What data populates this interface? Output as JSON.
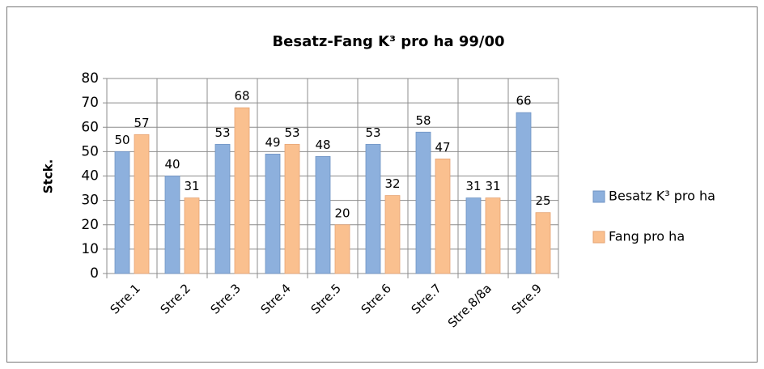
{
  "chart_data": {
    "type": "bar",
    "title": "Besatz-Fang K³ pro  ha 99/00",
    "y_label": "Stck.",
    "categories": [
      "Stre.1",
      "Stre.2",
      "Stre.3",
      "Stre.4",
      "Stre.5",
      "Stre.6",
      "Stre.7",
      "Stre.8/8a",
      "Stre.9"
    ],
    "series": [
      {
        "name": "Besatz K³ pro ha",
        "color": "#8db0dd",
        "values": [
          50,
          40,
          53,
          49,
          48,
          53,
          58,
          31,
          66
        ]
      },
      {
        "name": "Fang pro ha",
        "color": "#fac08f",
        "values": [
          57,
          31,
          68,
          53,
          20,
          32,
          47,
          31,
          25
        ]
      }
    ],
    "ylim": [
      0,
      80
    ],
    "yticks": [
      0,
      10,
      20,
      30,
      40,
      50,
      60,
      70,
      80
    ],
    "grid": true,
    "legend": "right"
  }
}
